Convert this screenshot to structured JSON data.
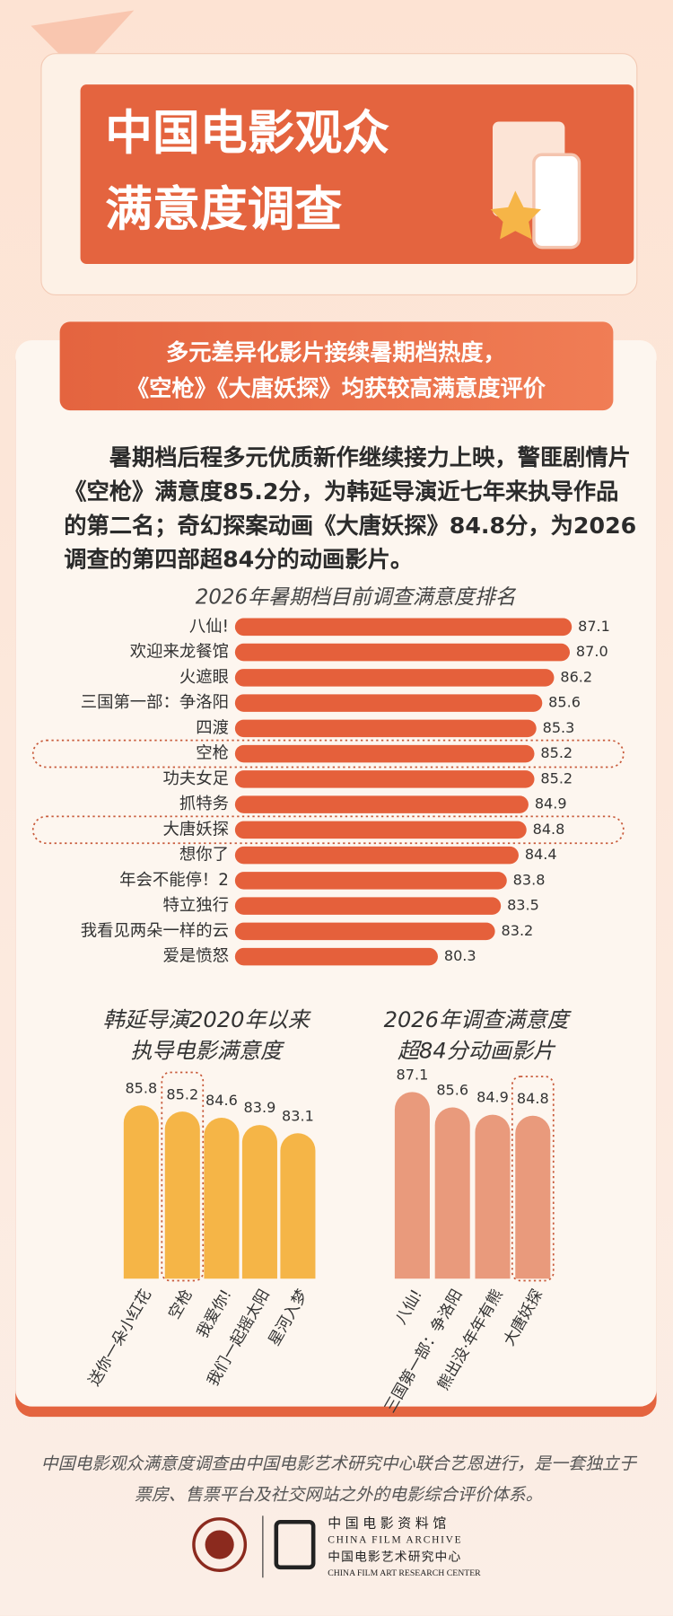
{
  "header": {
    "title_lines": [
      "中国电影观众",
      "满意度调查"
    ]
  },
  "subtitle_lines": [
    "多元差异化影片接续暑期档热度，",
    "《空枪》《大唐妖探》均获较高满意度评价"
  ],
  "paragraph": "暑期档后程多元优质新作继续接力上映，警匪剧情片《空枪》满意度85.2分，为韩延导演近七年来执导作品的第二名；奇幻探案动画《大唐妖探》84.8分，为2026调查的第四部超84分的动画影片。",
  "chart_data": [
    {
      "type": "bar",
      "orientation": "horizontal",
      "title": "2026年暑期档目前调查满意度排名",
      "categories": [
        "八仙!",
        "欢迎来龙餐馆",
        "火遮眼",
        "三国第一部：争洛阳",
        "四渡",
        "空枪",
        "功夫女足",
        "抓特务",
        "大唐妖探",
        "想你了",
        "年会不能停！2",
        "特立独行",
        "我看见两朵一样的云",
        "爱是愤怒"
      ],
      "values": [
        87.1,
        87.0,
        86.2,
        85.6,
        85.3,
        85.2,
        85.2,
        84.9,
        84.8,
        84.4,
        83.8,
        83.5,
        83.2,
        80.3
      ],
      "value_labels": [
        "87.1",
        "87.0",
        "86.2",
        "85.6",
        "85.3",
        "85.2",
        "85.2",
        "84.9",
        "84.8",
        "84.4",
        "83.8",
        "83.5",
        "83.2",
        "80.3"
      ],
      "color": "#e5603b",
      "xlim": [
        70,
        88
      ],
      "highlight": [
        5,
        8
      ]
    },
    {
      "type": "bar",
      "orientation": "vertical",
      "title": [
        "韩延导演2020年以来",
        "执导电影满意度"
      ],
      "categories": [
        "送你一朵小红花",
        "空枪",
        "我爱你!",
        "我们一起摇太阳",
        "星河入梦"
      ],
      "values": [
        85.8,
        85.2,
        84.6,
        83.9,
        83.1
      ],
      "color": "#f5b547",
      "ylim": [
        69,
        88
      ],
      "highlight": [
        1
      ]
    },
    {
      "type": "bar",
      "orientation": "vertical",
      "title": [
        "2026年调查满意度",
        "超84分动画影片"
      ],
      "categories": [
        "八仙!",
        "三国第一部：争洛阳",
        "熊出没·年年有熊",
        "大唐妖探"
      ],
      "values": [
        87.1,
        85.6,
        84.9,
        84.8
      ],
      "color": "#e99a7c",
      "ylim": [
        69,
        88
      ],
      "highlight": [
        3
      ]
    }
  ],
  "footer": {
    "note": "中国电影观众满意度调查由中国电影艺术研究中心联合艺恩进行，是一套独立于票房、售票平台及社交网站之外的电影综合评价体系。",
    "logo_lines": [
      "中国电影资料馆",
      "CHINA FILM ARCHIVE",
      "中国电影艺术研究中心",
      "CHINA FILM ART RESEARCH CENTER"
    ]
  }
}
